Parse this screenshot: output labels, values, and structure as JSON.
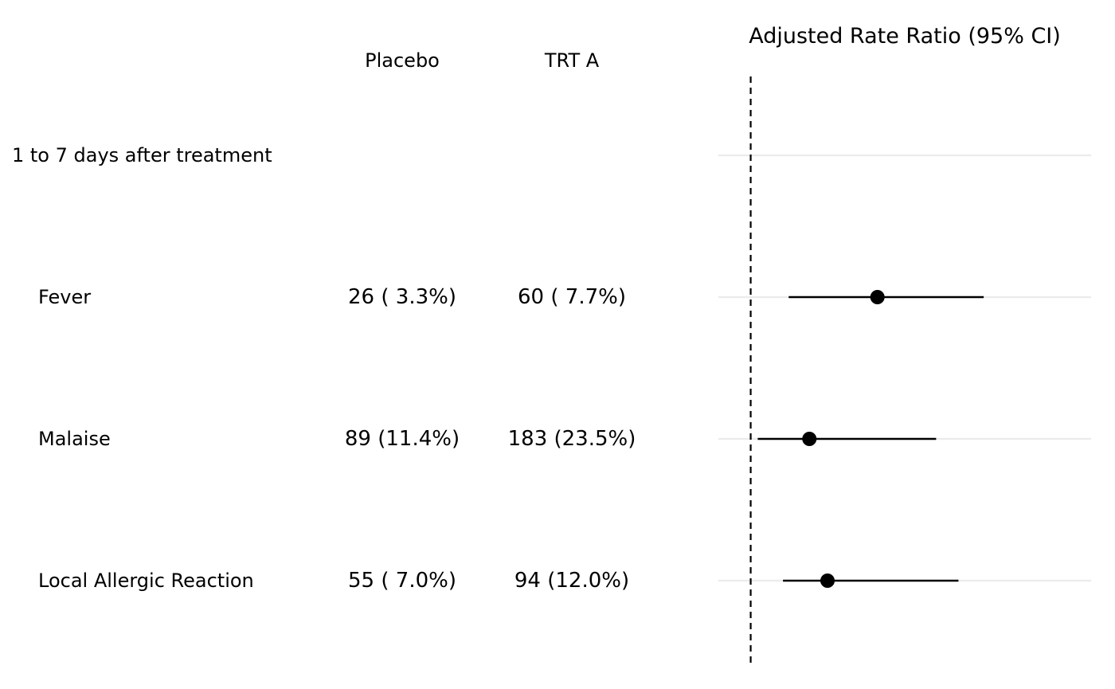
{
  "table": {
    "columns": {
      "placebo": "Placebo",
      "trt_a": "TRT A"
    },
    "rows": [
      {
        "label": "1 to 7 days after treatment",
        "placebo": "",
        "trt_a": "",
        "is_group": true
      },
      {
        "label": "Fever",
        "placebo": "26 ( 3.3%)",
        "trt_a": "60 ( 7.7%)",
        "is_group": false
      },
      {
        "label": "Malaise",
        "placebo": "89 (11.4%)",
        "trt_a": "183 (23.5%)",
        "is_group": false
      },
      {
        "label": "Local Allergic Reaction",
        "placebo": "55 ( 7.0%)",
        "trt_a": "94 (12.0%)",
        "is_group": false
      }
    ]
  },
  "chart_data": {
    "type": "forest",
    "title": "Adjusted Rate Ratio (95% CI)",
    "reference_line": 1.0,
    "xlim": [
      0.8,
      10.5
    ],
    "x_scale": "log",
    "x_axis_ticks_shown": false,
    "grid": "horizontal-rows",
    "categories": [
      "1 to 7 days after treatment",
      "Fever",
      "Malaise",
      "Local Allergic Reaction"
    ],
    "estimates": [
      null,
      2.4,
      1.5,
      1.7
    ],
    "lower": [
      null,
      1.3,
      1.05,
      1.25
    ],
    "upper": [
      null,
      5.0,
      3.6,
      4.2
    ],
    "colors": {
      "point": "#000000",
      "ci": "#000000",
      "reference": "#000000",
      "row_grid": "#ebebeb"
    }
  }
}
